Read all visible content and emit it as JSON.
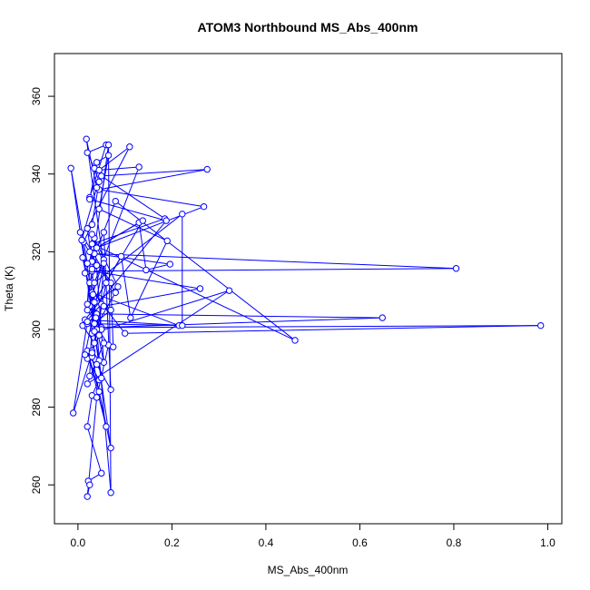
{
  "chart_data": {
    "type": "line",
    "title": "ATOM3 Northbound MS_Abs_400nm",
    "xlabel": "MS_Abs_400nm",
    "ylabel": "Theta (K)",
    "xlim": [
      -0.05,
      1.03
    ],
    "ylim": [
      250,
      371
    ],
    "xticks": [
      "0.0",
      "0.2",
      "0.4",
      "0.6",
      "0.8",
      "1.0"
    ],
    "xtick_values": [
      0.0,
      0.2,
      0.4,
      0.6,
      0.8,
      1.0
    ],
    "yticks": [
      "260",
      "280",
      "300",
      "320",
      "340",
      "360"
    ],
    "ytick_values": [
      260,
      280,
      300,
      320,
      340,
      360
    ],
    "grid": false,
    "series": [
      {
        "color": "#0000ff",
        "marker": "open-circle",
        "points": [
          [
            0.025,
            334.0
          ],
          [
            0.06,
            347.5
          ],
          [
            0.02,
            345.5
          ],
          [
            0.035,
            341.5
          ],
          [
            0.045,
            338.0
          ],
          [
            0.03,
            327.0
          ],
          [
            0.012,
            322.5
          ],
          [
            0.04,
            316.5
          ],
          [
            0.025,
            312.0
          ],
          [
            0.05,
            306.5
          ],
          [
            0.01,
            301.0
          ],
          [
            0.035,
            296.5
          ],
          [
            0.02,
            292.5
          ],
          [
            0.045,
            287.0
          ],
          [
            0.03,
            283.0
          ],
          [
            0.02,
            275.0
          ],
          [
            0.05,
            263.0
          ],
          [
            0.022,
            261.0
          ],
          [
            0.025,
            260.0
          ],
          [
            0.02,
            257.0
          ],
          [
            0.04,
            282.5
          ],
          [
            0.065,
            296.0
          ],
          [
            0.035,
            301.5
          ],
          [
            0.07,
            305.0
          ],
          [
            0.03,
            309.5
          ],
          [
            0.215,
            301.0
          ],
          [
            0.02,
            301.5
          ],
          [
            0.04,
            304.0
          ],
          [
            0.648,
            303.0
          ],
          [
            0.05,
            300.5
          ],
          [
            0.985,
            301.0
          ],
          [
            0.1,
            299.0
          ],
          [
            0.055,
            306.0
          ],
          [
            0.26,
            310.5
          ],
          [
            0.03,
            315.0
          ],
          [
            0.805,
            315.7
          ],
          [
            0.035,
            319.5
          ],
          [
            0.196,
            316.8
          ],
          [
            0.145,
            315.3
          ],
          [
            0.13,
            327.5
          ],
          [
            0.04,
            321.0
          ],
          [
            0.268,
            331.6
          ],
          [
            0.045,
            336.0
          ],
          [
            0.275,
            341.2
          ],
          [
            0.05,
            339.5
          ],
          [
            0.185,
            328.5
          ],
          [
            0.03,
            322.0
          ],
          [
            0.462,
            297.2
          ],
          [
            0.08,
            333.0
          ],
          [
            0.03,
            317.5
          ],
          [
            0.02,
            326.0
          ],
          [
            0.11,
            347.0
          ],
          [
            0.045,
            341.0
          ],
          [
            0.13,
            341.8
          ],
          [
            0.035,
            312.0
          ],
          [
            0.222,
            329.7
          ],
          [
            0.222,
            301.0
          ],
          [
            0.015,
            302.5
          ],
          [
            0.188,
            328.0
          ],
          [
            0.025,
            333.5
          ],
          [
            0.04,
            343.0
          ],
          [
            0.065,
            344.8
          ],
          [
            0.045,
            331.0
          ],
          [
            0.19,
            322.8
          ],
          [
            0.112,
            303.0
          ],
          [
            0.092,
            318.8
          ],
          [
            0.035,
            307.0
          ],
          [
            0.138,
            328.0
          ],
          [
            0.025,
            320.0
          ],
          [
            0.08,
            309.5
          ],
          [
            0.03,
            299.0
          ],
          [
            0.322,
            310.0
          ],
          [
            0.02,
            286.0
          ],
          [
            0.055,
            296.5
          ],
          [
            0.075,
            295.5
          ],
          [
            0.07,
            312.0
          ],
          [
            0.005,
            325.0
          ],
          [
            0.07,
            269.5
          ],
          [
            0.045,
            284.0
          ],
          [
            0.02,
            294.5
          ],
          [
            0.06,
            275.0
          ],
          [
            0.03,
            293.0
          ],
          [
            0.06,
            312.0
          ],
          [
            0.018,
            349.0
          ],
          [
            0.04,
            336.5
          ],
          [
            0.008,
            323.0
          ],
          [
            0.045,
            300.0
          ],
          [
            0.01,
            318.5
          ],
          [
            0.055,
            291.5
          ],
          [
            0.035,
            323.5
          ],
          [
            0.085,
            311.0
          ],
          [
            0.025,
            306.0
          ],
          [
            0.05,
            300.0
          ],
          [
            0.02,
            305.0
          ],
          [
            0.055,
            318.0
          ],
          [
            0.045,
            298.5
          ],
          [
            0.03,
            294.5
          ],
          [
            0.045,
            292.0
          ],
          [
            0.025,
            288.0
          ],
          [
            0.032,
            309.0
          ],
          [
            0.038,
            303.0
          ],
          [
            0.03,
            315.5
          ],
          [
            0.015,
            314.5
          ],
          [
            0.055,
            325.0
          ],
          [
            0.07,
            284.5
          ],
          [
            0.04,
            291.0
          ],
          [
            0.015,
            293.5
          ],
          [
            0.055,
            317.0
          ],
          [
            0.03,
            324.5
          ],
          [
            0.02,
            306.5
          ],
          [
            0.065,
            347.5
          ],
          [
            0.07,
            258.0
          ],
          [
            0.04,
            300.0
          ],
          [
            0.03,
            294.0
          ],
          [
            -0.01,
            278.5
          ],
          [
            0.02,
            302.0
          ],
          [
            0.035,
            299.5
          ],
          [
            0.05,
            287.5
          ],
          [
            -0.015,
            341.5
          ],
          [
            0.02,
            317.0
          ]
        ]
      }
    ]
  }
}
